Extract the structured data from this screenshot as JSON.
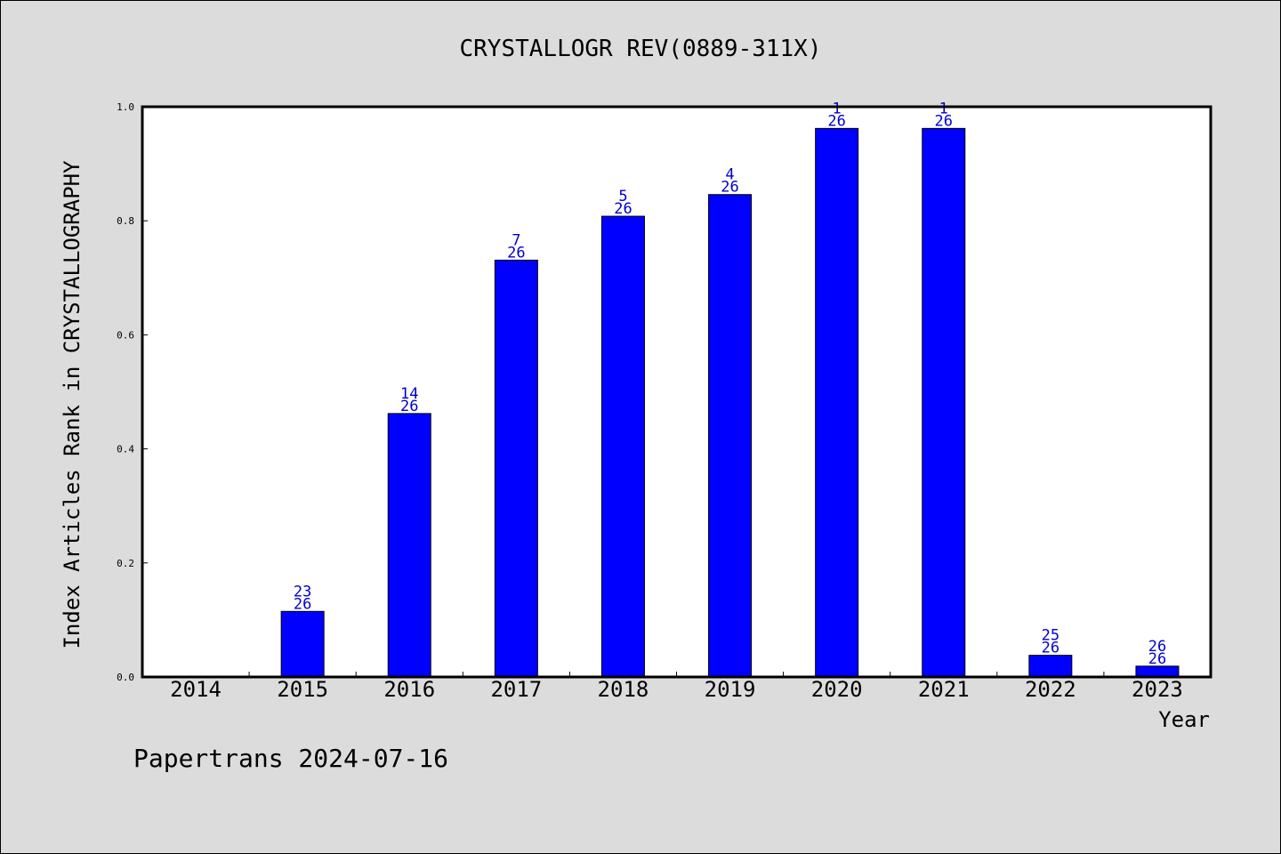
{
  "chart_data": {
    "type": "bar",
    "title": "CRYSTALLOGR REV(0889-311X)",
    "xlabel": "Year",
    "ylabel": "Index Articles Rank in CRYSTALLOGRAPHY",
    "ylim": [
      0,
      1.0
    ],
    "yticks": [
      "0.0",
      "0.2",
      "0.4",
      "0.6",
      "0.8",
      "1.0"
    ],
    "grid": false,
    "bar_color": "#0000ff",
    "label_color": "#0000cc",
    "categories": [
      "2014",
      "2015",
      "2016",
      "2017",
      "2018",
      "2019",
      "2020",
      "2021",
      "2022",
      "2023"
    ],
    "values": [
      null,
      0.115,
      0.462,
      0.731,
      0.808,
      0.846,
      0.962,
      0.962,
      0.038,
      0.019
    ],
    "rank_labels": [
      null,
      {
        "rank": "23",
        "total": "26"
      },
      {
        "rank": "14",
        "total": "26"
      },
      {
        "rank": "7",
        "total": "26"
      },
      {
        "rank": "5",
        "total": "26"
      },
      {
        "rank": "4",
        "total": "26"
      },
      {
        "rank": "1",
        "total": "26"
      },
      {
        "rank": "1",
        "total": "26"
      },
      {
        "rank": "25",
        "total": "26"
      },
      {
        "rank": "26",
        "total": "26"
      }
    ]
  },
  "footer": "Papertrans 2024-07-16"
}
